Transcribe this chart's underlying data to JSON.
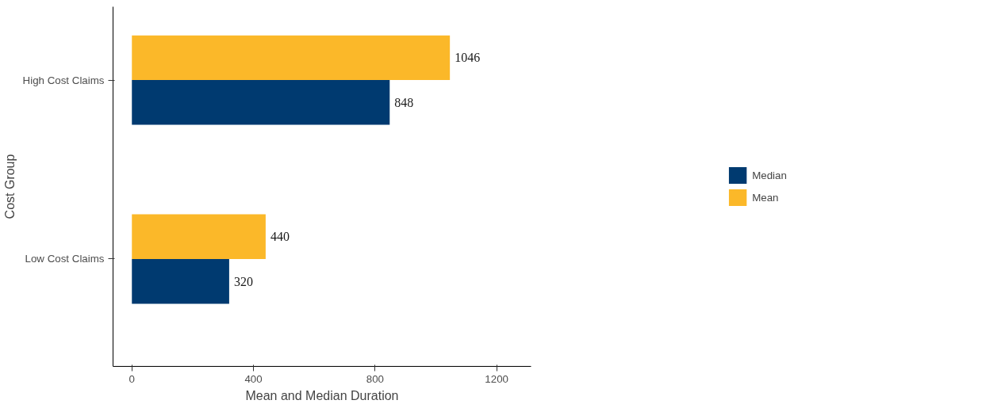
{
  "chart_data": {
    "type": "bar",
    "orientation": "horizontal",
    "xlabel": "Mean and Median Duration",
    "ylabel": "Cost Group",
    "categories": [
      "High Cost Claims",
      "Low Cost Claims"
    ],
    "series": [
      {
        "name": "Median",
        "color": "#003a70",
        "values": [
          848,
          320
        ]
      },
      {
        "name": "Mean",
        "color": "#fbb829",
        "values": [
          1046,
          440
        ]
      }
    ],
    "xlim": [
      -62,
      1313
    ],
    "xticks": [
      0,
      400,
      800,
      1200
    ],
    "data_labels": true,
    "grid": false,
    "legend": "right"
  }
}
